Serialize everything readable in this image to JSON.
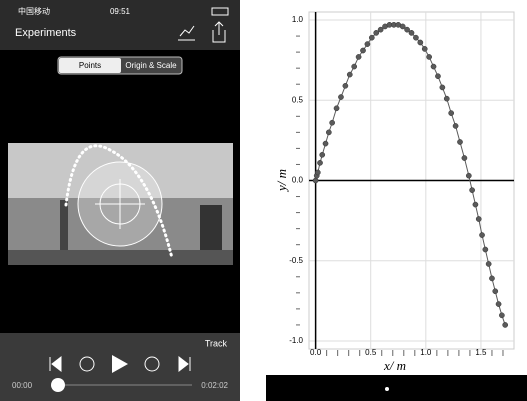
{
  "app": {
    "status": {
      "carrier": "中国移动",
      "time": "09:51"
    },
    "header": {
      "title": "Experiments"
    },
    "segments": [
      "Points",
      "Origin & Scale"
    ],
    "track_label": "Track",
    "time_start": "00:00",
    "time_end": "0:02:02"
  },
  "chart_data": {
    "type": "scatter",
    "xlabel": "x/ m",
    "ylabel": "y/ m",
    "color": "#5a5a5a",
    "line": true,
    "grid": true,
    "x": [
      0,
      0.01,
      0.02,
      0.04,
      0.06,
      0.09,
      0.12,
      0.15,
      0.19,
      0.23,
      0.27,
      0.31,
      0.35,
      0.39,
      0.43,
      0.47,
      0.51,
      0.55,
      0.59,
      0.63,
      0.67,
      0.71,
      0.75,
      0.79,
      0.83,
      0.87,
      0.91,
      0.95,
      0.99,
      1.03,
      1.07,
      1.11,
      1.15,
      1.19,
      1.23,
      1.27,
      1.31,
      1.35,
      1.39,
      1.42,
      1.45,
      1.48,
      1.51,
      1.54,
      1.57,
      1.6,
      1.63,
      1.66,
      1.69,
      1.72
    ],
    "values": [
      0,
      0.03,
      0.05,
      0.11,
      0.16,
      0.23,
      0.3,
      0.36,
      0.45,
      0.52,
      0.59,
      0.66,
      0.71,
      0.77,
      0.81,
      0.85,
      0.89,
      0.92,
      0.94,
      0.96,
      0.97,
      0.97,
      0.97,
      0.96,
      0.94,
      0.92,
      0.89,
      0.86,
      0.82,
      0.77,
      0.71,
      0.65,
      0.58,
      0.51,
      0.42,
      0.34,
      0.24,
      0.14,
      0.03,
      -0.06,
      -0.15,
      -0.24,
      -0.34,
      -0.43,
      -0.52,
      -0.61,
      -0.69,
      -0.77,
      -0.84,
      -0.9
    ],
    "xlim": [
      -0.06,
      1.8
    ],
    "ylim": [
      -1.05,
      1.05
    ],
    "xticks": [
      {
        "value": 0,
        "label": "0.0"
      },
      0.5,
      {
        "value": 1,
        "label": "1.0"
      },
      1.5
    ],
    "yticks": [
      {
        "value": -1,
        "label": "-1.0"
      },
      -0.5,
      {
        "value": 0,
        "label": "0.0"
      },
      0.5,
      {
        "value": 1,
        "label": "1.0"
      }
    ],
    "xminorticks": [
      0.1,
      0.2,
      0.3,
      0.4,
      0.6,
      0.7,
      0.8,
      0.9,
      1.1,
      1.2,
      1.3,
      1.4,
      1.6,
      1.7
    ],
    "yminorticks": [
      -0.9,
      -0.8,
      -0.7,
      -0.6,
      -0.4,
      -0.3,
      -0.2,
      -0.1,
      0.1,
      0.2,
      0.3,
      0.4,
      0.6,
      0.7,
      0.8,
      0.9
    ]
  }
}
